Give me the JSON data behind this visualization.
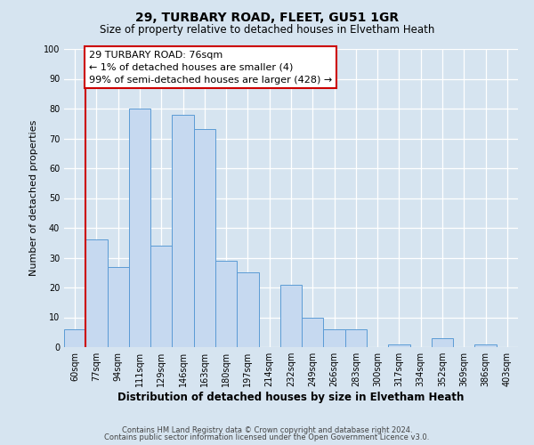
{
  "title": "29, TURBARY ROAD, FLEET, GU51 1GR",
  "subtitle": "Size of property relative to detached houses in Elvetham Heath",
  "xlabel": "Distribution of detached houses by size in Elvetham Heath",
  "ylabel": "Number of detached properties",
  "footer_line1": "Contains HM Land Registry data © Crown copyright and database right 2024.",
  "footer_line2": "Contains public sector information licensed under the Open Government Licence v3.0.",
  "bin_labels": [
    "60sqm",
    "77sqm",
    "94sqm",
    "111sqm",
    "129sqm",
    "146sqm",
    "163sqm",
    "180sqm",
    "197sqm",
    "214sqm",
    "232sqm",
    "249sqm",
    "266sqm",
    "283sqm",
    "300sqm",
    "317sqm",
    "334sqm",
    "352sqm",
    "369sqm",
    "386sqm",
    "403sqm"
  ],
  "bar_values": [
    6,
    36,
    27,
    80,
    34,
    78,
    73,
    29,
    25,
    0,
    21,
    10,
    6,
    6,
    0,
    1,
    0,
    3,
    0,
    1,
    0
  ],
  "bar_color": "#c6d9f0",
  "bar_edge_color": "#5b9bd5",
  "background_color": "#d6e4f0",
  "ylim": [
    0,
    100
  ],
  "yticks": [
    0,
    10,
    20,
    30,
    40,
    50,
    60,
    70,
    80,
    90,
    100
  ],
  "red_line_index": 1,
  "annotation_title": "29 TURBARY ROAD: 76sqm",
  "annotation_line1": "← 1% of detached houses are smaller (4)",
  "annotation_line2": "99% of semi-detached houses are larger (428) →",
  "annotation_box_color": "#ffffff",
  "annotation_border_color": "#cc0000",
  "title_fontsize": 10,
  "subtitle_fontsize": 8.5,
  "xlabel_fontsize": 8.5,
  "ylabel_fontsize": 8,
  "tick_fontsize": 7,
  "footer_fontsize": 6,
  "annotation_fontsize": 8
}
